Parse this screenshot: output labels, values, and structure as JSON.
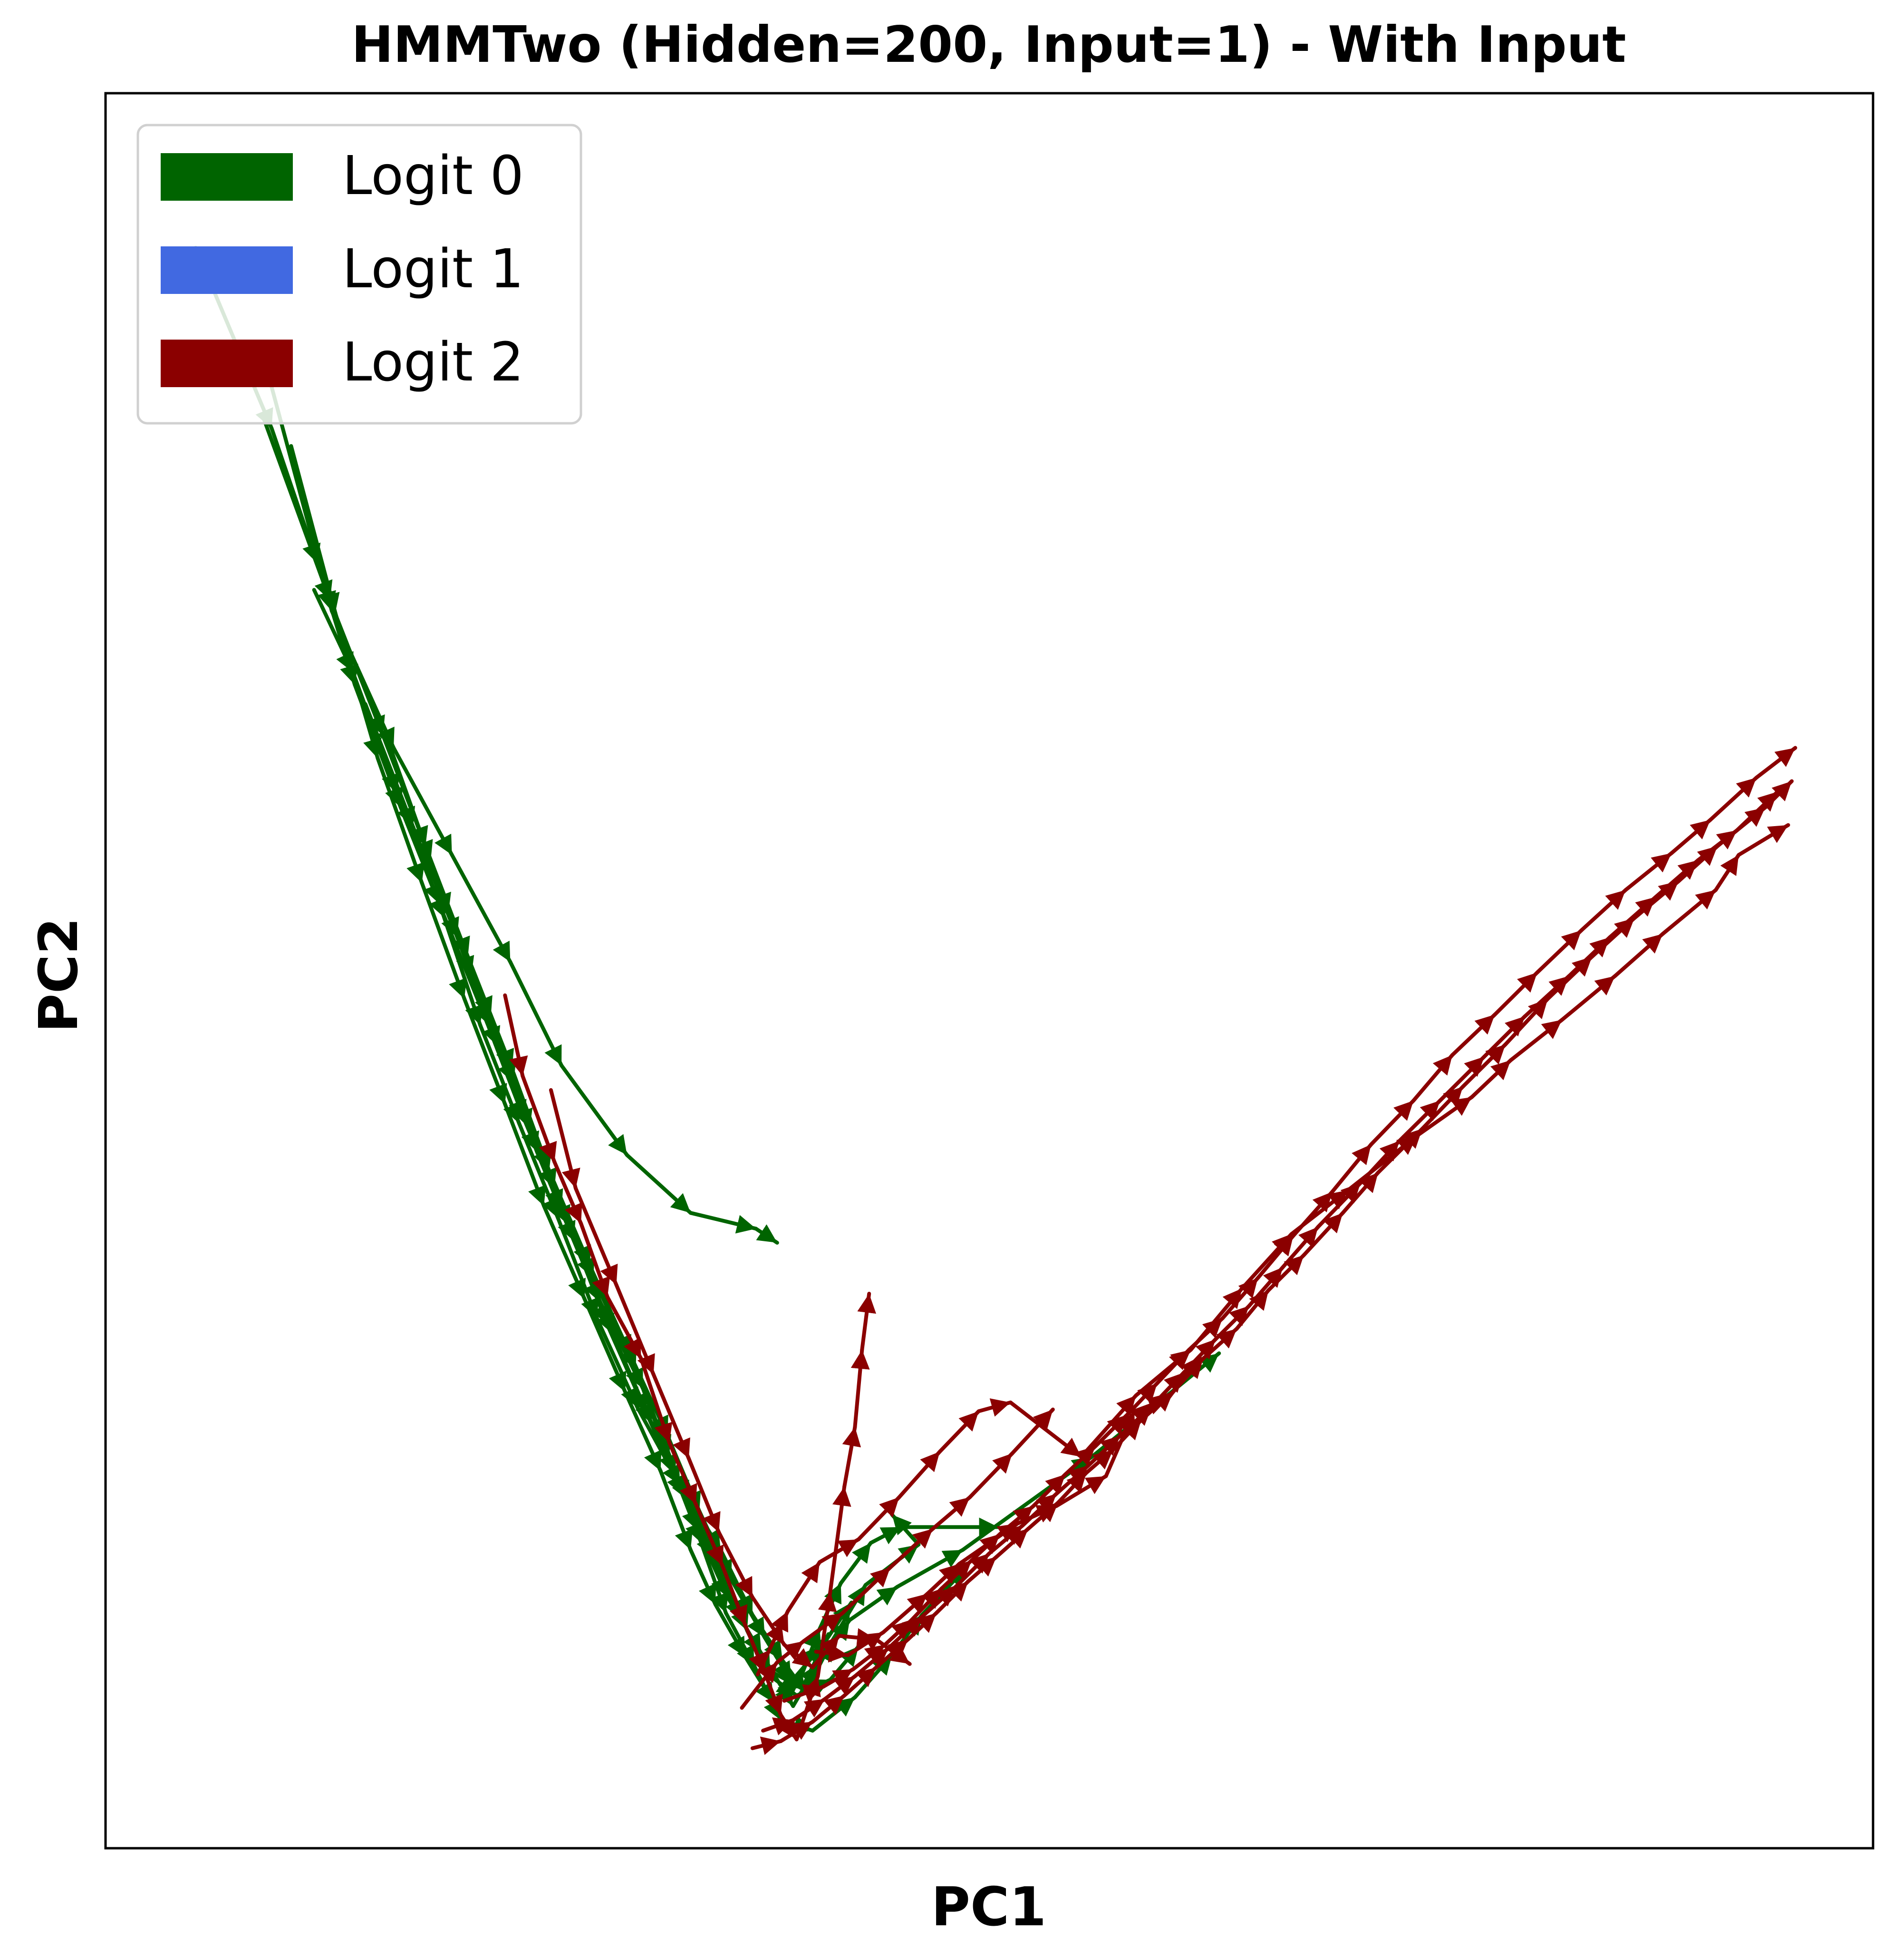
{
  "chart_data": {
    "type": "line",
    "title": "HMMTwo (Hidden=200, Input=1) - With Input",
    "xlabel": "PC1",
    "ylabel": "PC2",
    "xlim": [
      0,
      100
    ],
    "ylim": [
      0,
      100
    ],
    "ticks": "none",
    "grid": false,
    "legend_position": "top-left",
    "legend": [
      {
        "label": "Logit 0",
        "color": "#006400"
      },
      {
        "label": "Logit 1",
        "color": "#4169E1"
      },
      {
        "label": "Logit 2",
        "color": "#8B0000"
      }
    ],
    "series": [
      {
        "color": "#006400",
        "points": [
          [
            5.1,
            91.2
          ],
          [
            9.4,
            80.9
          ],
          [
            12.0,
            73.2
          ],
          [
            14.1,
            66.3
          ],
          [
            16.7,
            59.3
          ],
          [
            19.2,
            53.0
          ],
          [
            21.6,
            47.0
          ],
          [
            23.7,
            41.5
          ],
          [
            25.8,
            36.4
          ],
          [
            28.0,
            31.1
          ],
          [
            30.4,
            26.2
          ],
          [
            32.2,
            21.3
          ],
          [
            33.7,
            17.4
          ],
          [
            35.1,
            13.4
          ],
          [
            36.7,
            10.4
          ],
          [
            38.2,
            7.3
          ],
          [
            40.0,
            6.7
          ],
          [
            42.4,
            8.6
          ],
          [
            44.5,
            11.0
          ],
          [
            46.2,
            13.3
          ],
          [
            48.7,
            16.0
          ]
        ]
      },
      {
        "color": "#006400",
        "points": [
          [
            8.9,
            81.6
          ],
          [
            12.7,
            71.1
          ],
          [
            15.7,
            63.4
          ],
          [
            18.4,
            56.3
          ],
          [
            20.7,
            49.7
          ],
          [
            23.1,
            43.6
          ],
          [
            25.4,
            37.6
          ],
          [
            27.6,
            32.5
          ],
          [
            30.0,
            27.3
          ],
          [
            31.9,
            22.4
          ],
          [
            33.5,
            18.1
          ],
          [
            35.2,
            14.3
          ],
          [
            37.1,
            11.1
          ],
          [
            38.9,
            8.1
          ],
          [
            40.3,
            10.5
          ],
          [
            42.1,
            13.0
          ],
          [
            44.8,
            14.9
          ],
          [
            48.5,
            17.0
          ],
          [
            55.8,
            22.3
          ],
          [
            63.0,
            28.2
          ]
        ]
      },
      {
        "color": "#006400",
        "points": [
          [
            10.5,
            79.9
          ],
          [
            13.0,
            70.4
          ],
          [
            15.4,
            62.1
          ],
          [
            17.9,
            55.0
          ],
          [
            20.3,
            48.4
          ],
          [
            22.6,
            42.4
          ],
          [
            24.8,
            36.6
          ],
          [
            27.1,
            31.3
          ],
          [
            29.4,
            26.0
          ],
          [
            31.4,
            21.5
          ],
          [
            33.1,
            17.0
          ],
          [
            34.5,
            13.9
          ],
          [
            36.2,
            10.9
          ],
          [
            37.8,
            8.3
          ],
          [
            39.2,
            9.4
          ],
          [
            40.4,
            12.5
          ],
          [
            41.6,
            15.1
          ],
          [
            43.3,
            17.4
          ],
          [
            45.0,
            18.3
          ],
          [
            50.5,
            18.3
          ]
        ]
      },
      {
        "color": "#006400",
        "points": [
          [
            11.8,
            71.7
          ],
          [
            14.0,
            67.0
          ],
          [
            16.5,
            60.1
          ],
          [
            18.9,
            53.8
          ],
          [
            21.2,
            46.9
          ],
          [
            23.4,
            41.3
          ],
          [
            25.6,
            35.9
          ],
          [
            27.8,
            30.2
          ],
          [
            30.1,
            25.1
          ],
          [
            32.5,
            20.7
          ],
          [
            34.8,
            17.0
          ],
          [
            36.6,
            13.3
          ],
          [
            38.3,
            10.7
          ],
          [
            39.6,
            8.9
          ],
          [
            41.1,
            11.8
          ],
          [
            43.0,
            15.0
          ],
          [
            46.0,
            17.3
          ],
          [
            44.5,
            19.0
          ]
        ]
      },
      {
        "color": "#006400",
        "points": [
          [
            9.2,
            84.0
          ],
          [
            12.8,
            70.5
          ],
          [
            16.3,
            62.7
          ],
          [
            19.6,
            56.6
          ],
          [
            22.9,
            50.5
          ],
          [
            25.8,
            44.6
          ],
          [
            29.5,
            39.5
          ],
          [
            33.1,
            36.2
          ],
          [
            36.8,
            35.3
          ],
          [
            38.0,
            34.5
          ]
        ]
      },
      {
        "color": "#006400",
        "points": [
          [
            14.7,
            65.2
          ],
          [
            17.4,
            58.2
          ],
          [
            19.9,
            51.9
          ],
          [
            22.2,
            45.7
          ],
          [
            24.4,
            39.7
          ],
          [
            26.5,
            34.6
          ],
          [
            28.7,
            29.3
          ],
          [
            30.9,
            24.2
          ],
          [
            33.0,
            19.8
          ],
          [
            34.7,
            16.3
          ],
          [
            36.3,
            12.4
          ],
          [
            37.5,
            9.9
          ],
          [
            39.1,
            8.7
          ],
          [
            41.0,
            9.6
          ],
          [
            42.6,
            11.5
          ]
        ]
      },
      {
        "color": "#006400",
        "points": [
          [
            15.8,
            63.6
          ],
          [
            18.1,
            57.1
          ],
          [
            20.5,
            50.8
          ],
          [
            23.0,
            44.4
          ],
          [
            25.1,
            38.6
          ],
          [
            27.4,
            33.2
          ],
          [
            29.7,
            28.1
          ],
          [
            31.8,
            23.5
          ],
          [
            33.6,
            19.2
          ],
          [
            35.4,
            15.3
          ],
          [
            37.3,
            12.0
          ],
          [
            38.8,
            9.5
          ],
          [
            40.6,
            11.6
          ],
          [
            42.2,
            14.0
          ]
        ]
      },
      {
        "color": "#006400",
        "points": [
          [
            17.1,
            59.9
          ],
          [
            19.4,
            53.3
          ],
          [
            21.8,
            47.4
          ],
          [
            24.0,
            41.0
          ],
          [
            26.2,
            35.5
          ],
          [
            28.4,
            29.8
          ],
          [
            30.6,
            24.8
          ],
          [
            32.7,
            20.1
          ],
          [
            34.4,
            16.6
          ],
          [
            36.0,
            13.0
          ],
          [
            37.6,
            10.1
          ],
          [
            39.4,
            9.1
          ],
          [
            40.9,
            12.2
          ]
        ]
      },
      {
        "color": "#8B0000",
        "points": [
          [
            22.6,
            48.6
          ],
          [
            23.6,
            44.0
          ],
          [
            25.4,
            39.1
          ],
          [
            26.9,
            35.6
          ],
          [
            28.4,
            31.4
          ],
          [
            30.3,
            27.9
          ],
          [
            31.9,
            23.1
          ],
          [
            33.4,
            19.6
          ],
          [
            34.9,
            16.1
          ],
          [
            36.2,
            12.7
          ],
          [
            37.3,
            10.0
          ],
          [
            38.2,
            7.6
          ],
          [
            39.1,
            6.2
          ],
          [
            40.3,
            9.8
          ],
          [
            41.0,
            14.6
          ],
          [
            41.8,
            20.6
          ],
          [
            42.4,
            24.0
          ],
          [
            42.8,
            28.4
          ],
          [
            43.2,
            31.6
          ]
        ]
      },
      {
        "color": "#8B0000",
        "points": [
          [
            25.2,
            43.2
          ],
          [
            26.6,
            37.6
          ],
          [
            28.9,
            32.1
          ],
          [
            31.0,
            27.0
          ],
          [
            33.0,
            22.2
          ],
          [
            34.7,
            18.0
          ],
          [
            36.6,
            14.3
          ],
          [
            38.4,
            11.6
          ],
          [
            40.0,
            10.3
          ],
          [
            41.5,
            12.1
          ],
          [
            43.6,
            11.9
          ],
          [
            45.5,
            10.5
          ]
        ]
      },
      {
        "color": "#8B0000",
        "points": [
          [
            36.9,
            9.9
          ],
          [
            38.6,
            13.5
          ],
          [
            40.4,
            16.3
          ],
          [
            42.6,
            17.6
          ],
          [
            44.9,
            20.0
          ],
          [
            47.2,
            22.6
          ],
          [
            49.4,
            24.9
          ],
          [
            51.2,
            25.4
          ],
          [
            55.2,
            22.3
          ],
          [
            58.3,
            25.8
          ],
          [
            61.4,
            28.4
          ],
          [
            64.3,
            31.9
          ],
          [
            67.1,
            35.0
          ],
          [
            70.3,
            37.5
          ],
          [
            74.2,
            40.6
          ],
          [
            77.3,
            42.8
          ],
          [
            79.5,
            44.9
          ],
          [
            82.4,
            47.2
          ],
          [
            85.4,
            49.7
          ],
          [
            88.1,
            52.1
          ],
          [
            91.1,
            54.6
          ],
          [
            92.4,
            56.6
          ],
          [
            95.2,
            58.3
          ]
        ]
      },
      {
        "color": "#8B0000",
        "points": [
          [
            38.4,
            8.4
          ],
          [
            40.6,
            9.2
          ],
          [
            42.3,
            10.2
          ],
          [
            44.1,
            11.6
          ],
          [
            45.6,
            13.0
          ],
          [
            47.3,
            14.8
          ],
          [
            49.0,
            16.4
          ],
          [
            50.6,
            17.9
          ],
          [
            52.5,
            19.5
          ],
          [
            54.3,
            21.3
          ],
          [
            56.0,
            22.9
          ],
          [
            57.8,
            24.7
          ],
          [
            59.5,
            26.5
          ],
          [
            61.3,
            28.4
          ],
          [
            63.2,
            30.2
          ],
          [
            65.2,
            32.5
          ],
          [
            67.2,
            34.9
          ],
          [
            69.4,
            37.4
          ],
          [
            71.6,
            40.1
          ],
          [
            74.0,
            42.6
          ],
          [
            76.2,
            45.2
          ],
          [
            78.6,
            47.5
          ],
          [
            81.0,
            49.9
          ],
          [
            83.5,
            52.3
          ],
          [
            86.0,
            54.6
          ],
          [
            88.6,
            56.7
          ],
          [
            90.8,
            58.6
          ],
          [
            93.4,
            61.0
          ],
          [
            95.6,
            62.7
          ]
        ]
      },
      {
        "color": "#8B0000",
        "points": [
          [
            36.6,
            5.7
          ],
          [
            38.2,
            6.1
          ],
          [
            40.0,
            7.2
          ],
          [
            41.8,
            8.7
          ],
          [
            43.6,
            10.3
          ],
          [
            45.4,
            11.9
          ],
          [
            47.0,
            13.4
          ],
          [
            48.8,
            15.2
          ],
          [
            50.4,
            16.6
          ],
          [
            52.2,
            18.2
          ],
          [
            53.9,
            19.7
          ],
          [
            55.5,
            21.4
          ],
          [
            57.0,
            22.7
          ],
          [
            58.6,
            24.4
          ],
          [
            60.4,
            26.0
          ],
          [
            62.1,
            27.9
          ],
          [
            64.0,
            29.6
          ],
          [
            65.8,
            31.8
          ],
          [
            67.8,
            33.8
          ],
          [
            70.0,
            36.2
          ],
          [
            72.0,
            38.5
          ],
          [
            74.5,
            41.0
          ],
          [
            76.8,
            43.4
          ],
          [
            79.2,
            45.8
          ],
          [
            81.6,
            48.4
          ],
          [
            84.1,
            50.8
          ],
          [
            86.5,
            53.0
          ],
          [
            89.0,
            55.1
          ],
          [
            91.2,
            57.1
          ],
          [
            93.9,
            59.3
          ],
          [
            95.4,
            60.8
          ]
        ]
      },
      {
        "color": "#8B0000",
        "points": [
          [
            37.2,
            6.7
          ],
          [
            38.9,
            7.3
          ],
          [
            40.7,
            8.5
          ],
          [
            42.4,
            9.8
          ],
          [
            44.3,
            11.4
          ],
          [
            46.2,
            13.2
          ],
          [
            48.1,
            14.9
          ],
          [
            50.0,
            16.8
          ],
          [
            51.9,
            18.4
          ],
          [
            53.8,
            20.2
          ],
          [
            55.6,
            21.8
          ],
          [
            57.4,
            23.5
          ],
          [
            59.2,
            25.2
          ],
          [
            61.0,
            27.1
          ],
          [
            62.8,
            29.0
          ],
          [
            64.7,
            30.9
          ],
          [
            66.6,
            33.1
          ],
          [
            68.6,
            35.4
          ],
          [
            71.0,
            37.9
          ],
          [
            73.2,
            40.3
          ],
          [
            75.5,
            42.6
          ],
          [
            78.0,
            45.1
          ],
          [
            80.3,
            47.4
          ],
          [
            82.8,
            49.7
          ],
          [
            85.1,
            51.9
          ],
          [
            87.7,
            54.2
          ],
          [
            90.1,
            56.3
          ],
          [
            92.3,
            58.0
          ],
          [
            94.6,
            60.2
          ]
        ]
      },
      {
        "color": "#8B0000",
        "points": [
          [
            40.2,
            11.2
          ],
          [
            42.0,
            11.0
          ],
          [
            44.0,
            12.3
          ],
          [
            46.5,
            14.5
          ],
          [
            48.3,
            16.2
          ],
          [
            51.6,
            18.5
          ],
          [
            53.8,
            19.5
          ],
          [
            56.6,
            21.2
          ],
          [
            58.2,
            24.9
          ],
          [
            60.1,
            25.6
          ],
          [
            61.9,
            28.0
          ]
        ]
      },
      {
        "color": "#8B0000",
        "points": [
          [
            36.0,
            8.0
          ],
          [
            38.0,
            10.6
          ],
          [
            39.5,
            11.8
          ],
          [
            41.7,
            13.4
          ],
          [
            44.4,
            16.0
          ],
          [
            46.8,
            18.2
          ],
          [
            48.9,
            20.0
          ],
          [
            51.3,
            22.5
          ],
          [
            53.6,
            25.0
          ]
        ]
      }
    ]
  }
}
